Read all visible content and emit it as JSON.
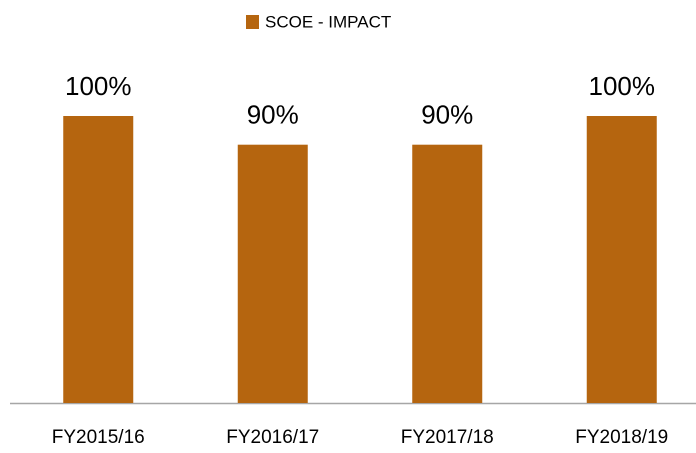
{
  "chart_data": {
    "type": "bar",
    "categories": [
      "FY2015/16",
      "FY2016/17",
      "FY2017/18",
      "FY2018/19"
    ],
    "series": [
      {
        "name": "SCOE - IMPACT",
        "color": "#b5650f",
        "values": [
          100,
          90,
          90,
          100
        ],
        "value_labels": [
          "100%",
          "90%",
          "90%",
          "100%"
        ]
      }
    ]
  }
}
